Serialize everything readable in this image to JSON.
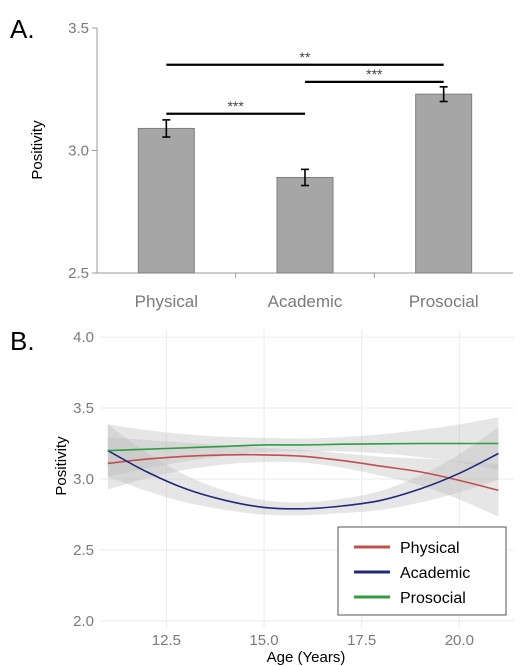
{
  "chart_data": [
    {
      "panel_label": "A.",
      "type": "bar",
      "ylabel": "Positivity",
      "xlabel": "",
      "ylim": [
        2.5,
        3.5
      ],
      "yticks": [
        "2.5",
        "3.0",
        "3.5"
      ],
      "categories": [
        "Physical",
        "Academic",
        "Prosocial"
      ],
      "values": [
        3.09,
        2.89,
        3.23
      ],
      "errors": [
        0.035,
        0.033,
        0.03
      ],
      "bar_color": "#a6a6a6",
      "significance": [
        {
          "from": "Physical",
          "to": "Academic",
          "label": "***",
          "y": 3.15
        },
        {
          "from": "Academic",
          "to": "Prosocial",
          "label": "***",
          "y": 3.28
        },
        {
          "from": "Physical",
          "to": "Prosocial",
          "label": "**",
          "y": 3.35
        }
      ]
    },
    {
      "panel_label": "B.",
      "type": "line",
      "xlabel": "Age (Years)",
      "ylabel": "Positivity",
      "xlim": [
        10.8,
        21.4
      ],
      "ylim": [
        1.95,
        4.05
      ],
      "xticks": [
        "12.5",
        "15.0",
        "17.5",
        "20.0"
      ],
      "yticks": [
        "2.0",
        "2.5",
        "3.0",
        "3.5",
        "4.0"
      ],
      "grid": true,
      "legend_position": "bottom-right",
      "series": [
        {
          "name": "Physical",
          "color": "#c0504d",
          "x": [
            11,
            12,
            13,
            14,
            15,
            16,
            17,
            18,
            19,
            20,
            21
          ],
          "y": [
            3.11,
            3.14,
            3.16,
            3.17,
            3.17,
            3.16,
            3.13,
            3.09,
            3.05,
            2.99,
            2.92
          ]
        },
        {
          "name": "Academic",
          "color": "#1f2a7a",
          "x": [
            11,
            12,
            13,
            14,
            15,
            16,
            17,
            18,
            19,
            20,
            21
          ],
          "y": [
            3.2,
            3.05,
            2.93,
            2.85,
            2.8,
            2.79,
            2.81,
            2.85,
            2.93,
            3.04,
            3.18
          ]
        },
        {
          "name": "Prosocial",
          "color": "#2e9e3e",
          "x": [
            11,
            12,
            13,
            14,
            15,
            16,
            17,
            18,
            19,
            20,
            21
          ],
          "y": [
            3.2,
            3.21,
            3.22,
            3.23,
            3.24,
            3.24,
            3.245,
            3.248,
            3.25,
            3.25,
            3.25
          ]
        }
      ]
    }
  ]
}
